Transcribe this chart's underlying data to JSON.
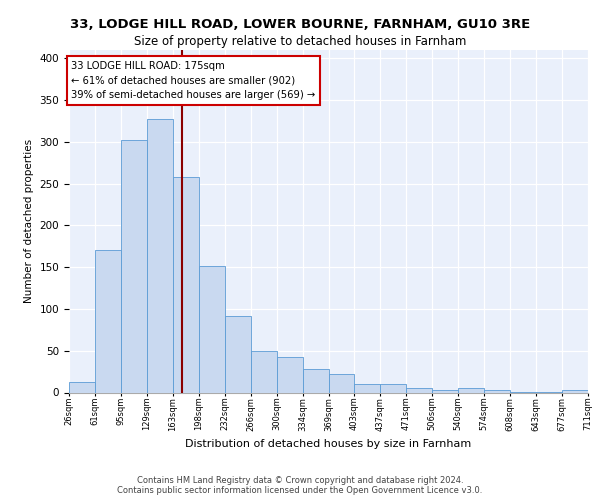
{
  "title_line1": "33, LODGE HILL ROAD, LOWER BOURNE, FARNHAM, GU10 3RE",
  "title_line2": "Size of property relative to detached houses in Farnham",
  "xlabel": "Distribution of detached houses by size in Farnham",
  "ylabel": "Number of detached properties",
  "categories": [
    "26sqm",
    "61sqm",
    "95sqm",
    "129sqm",
    "163sqm",
    "198sqm",
    "232sqm",
    "266sqm",
    "300sqm",
    "334sqm",
    "369sqm",
    "403sqm",
    "437sqm",
    "471sqm",
    "506sqm",
    "540sqm",
    "574sqm",
    "608sqm",
    "643sqm",
    "677sqm",
    "711sqm"
  ],
  "bar_heights": [
    13,
    170,
    302,
    328,
    258,
    152,
    92,
    50,
    43,
    28,
    22,
    10,
    10,
    5,
    3,
    5,
    3,
    1,
    1,
    3
  ],
  "bar_color": "#c9d9f0",
  "bar_edge_color": "#5b9bd5",
  "annotation_text": "33 LODGE HILL ROAD: 175sqm\n← 61% of detached houses are smaller (902)\n39% of semi-detached houses are larger (569) →",
  "vline_color": "#8b0000",
  "annotation_box_edge": "#cc0000",
  "footer_line1": "Contains HM Land Registry data © Crown copyright and database right 2024.",
  "footer_line2": "Contains public sector information licensed under the Open Government Licence v3.0.",
  "ylim": [
    0,
    410
  ],
  "yticks": [
    0,
    50,
    100,
    150,
    200,
    250,
    300,
    350,
    400
  ],
  "background_color": "#eaf0fb",
  "grid_color": "#ffffff",
  "bin_edges_sqm": [
    26,
    61,
    95,
    129,
    163,
    198,
    232,
    266,
    300,
    334,
    369,
    403,
    437,
    471,
    506,
    540,
    574,
    608,
    643,
    677,
    711
  ],
  "property_sqm": 175
}
